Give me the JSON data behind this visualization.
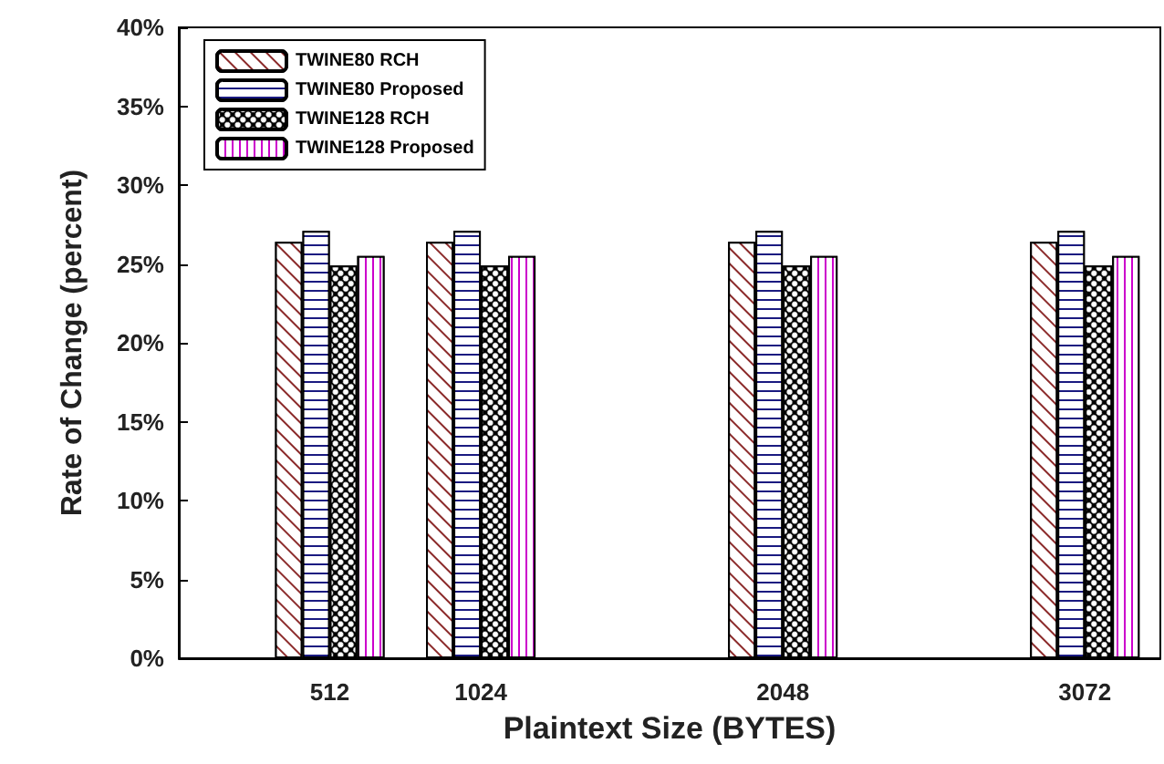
{
  "chart_data": {
    "type": "bar",
    "xlabel": "Plaintext Size (BYTES)",
    "ylabel": "Rate of Change (percent)",
    "x": [
      512,
      1024,
      2048,
      3072
    ],
    "series": [
      {
        "name": "TWINE80 RCH",
        "color": "#8b2a2a",
        "values": [
          26.4,
          26.4,
          26.4,
          26.4
        ]
      },
      {
        "name": "TWINE80 Proposed",
        "color": "#1a1a80",
        "values": [
          27.1,
          27.1,
          27.1,
          27.1
        ]
      },
      {
        "name": "TWINE128 RCH",
        "color": "#000000",
        "values": [
          24.9,
          24.9,
          24.9,
          24.9
        ]
      },
      {
        "name": "TWINE128 Proposed",
        "color": "#cc00cc",
        "values": [
          25.5,
          25.5,
          25.5,
          25.5
        ]
      }
    ],
    "xlim": [
      0,
      3328
    ],
    "xticks": [
      512,
      1024,
      2048,
      3072
    ],
    "ylim": [
      0,
      40
    ],
    "yticks": [
      {
        "value": 0,
        "label": "0%"
      },
      {
        "value": 5,
        "label": "5%"
      },
      {
        "value": 10,
        "label": "10%"
      },
      {
        "value": 15,
        "label": "15%"
      },
      {
        "value": 20,
        "label": "20%"
      },
      {
        "value": 25,
        "label": "25%"
      },
      {
        "value": 30,
        "label": "30%"
      },
      {
        "value": 35,
        "label": "35%"
      },
      {
        "value": 40,
        "label": "40%"
      }
    ],
    "grid": false,
    "legend": "top left"
  }
}
